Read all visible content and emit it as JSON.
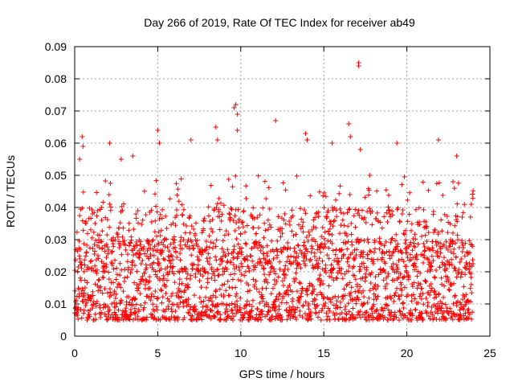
{
  "chart_data": {
    "type": "scatter",
    "title": "Day 266 of 2019, Rate Of TEC Index for receiver ab49",
    "xlabel": "GPS time / hours",
    "ylabel": "ROTI / TECUs",
    "xlim": [
      0,
      25
    ],
    "ylim": [
      0,
      0.09
    ],
    "x_ticks": [
      0,
      5,
      10,
      15,
      20,
      25
    ],
    "x_tick_labels": [
      "0",
      "5",
      "10",
      "15",
      "20",
      "25"
    ],
    "y_ticks": [
      0,
      0.01,
      0.02,
      0.03,
      0.04,
      0.05,
      0.06,
      0.07,
      0.08,
      0.09
    ],
    "y_tick_labels": [
      "0",
      "0.01",
      "0.02",
      "0.03",
      "0.04",
      "0.05",
      "0.06",
      "0.07",
      "0.08",
      "0.09"
    ],
    "grid": true,
    "marker": "+",
    "series_color": "#ff0000",
    "series": [
      {
        "name": "ROTI",
        "x_range": [
          0,
          24
        ],
        "typical_range": [
          0.005,
          0.03
        ],
        "outliers": [
          {
            "x": 0.3,
            "y": 0.055
          },
          {
            "x": 0.45,
            "y": 0.062
          },
          {
            "x": 0.5,
            "y": 0.059
          },
          {
            "x": 2.1,
            "y": 0.06
          },
          {
            "x": 2.8,
            "y": 0.055
          },
          {
            "x": 3.5,
            "y": 0.056
          },
          {
            "x": 5.0,
            "y": 0.064
          },
          {
            "x": 5.1,
            "y": 0.06
          },
          {
            "x": 7.0,
            "y": 0.061
          },
          {
            "x": 8.5,
            "y": 0.065
          },
          {
            "x": 8.6,
            "y": 0.061
          },
          {
            "x": 9.6,
            "y": 0.071
          },
          {
            "x": 9.7,
            "y": 0.072
          },
          {
            "x": 9.8,
            "y": 0.069
          },
          {
            "x": 9.8,
            "y": 0.064
          },
          {
            "x": 12.1,
            "y": 0.067
          },
          {
            "x": 13.9,
            "y": 0.063
          },
          {
            "x": 14.0,
            "y": 0.061
          },
          {
            "x": 15.5,
            "y": 0.06
          },
          {
            "x": 16.5,
            "y": 0.066
          },
          {
            "x": 16.6,
            "y": 0.062
          },
          {
            "x": 17.1,
            "y": 0.085
          },
          {
            "x": 17.1,
            "y": 0.084
          },
          {
            "x": 17.2,
            "y": 0.058
          },
          {
            "x": 19.4,
            "y": 0.06
          },
          {
            "x": 21.9,
            "y": 0.061
          },
          {
            "x": 23.0,
            "y": 0.056
          }
        ]
      }
    ]
  }
}
